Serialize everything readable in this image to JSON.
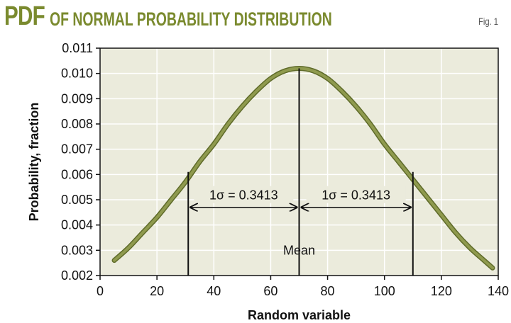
{
  "header": {
    "title_prefix": "PDF",
    "title_rest": "OF NORMAL PROBABILITY DISTRIBUTION",
    "fig_label": "Fig. 1"
  },
  "colors": {
    "title": "#7a8a2e",
    "plot_background": "#ebebdc",
    "curve": "#8f9a4e",
    "curve_edge": "#5f6b2a",
    "grid": "#ffffff"
  },
  "chart_data": {
    "type": "line",
    "xlabel": "Random variable",
    "ylabel": "Probability, fraction",
    "xlim": [
      0,
      140
    ],
    "ylim": [
      0.002,
      0.011
    ],
    "xticks": [
      0,
      20,
      40,
      60,
      80,
      100,
      120,
      140
    ],
    "yticks": [
      0.002,
      0.003,
      0.004,
      0.005,
      0.006,
      0.007,
      0.008,
      0.009,
      0.01,
      0.011
    ],
    "ytick_labels": [
      "0.002",
      "0.003",
      "0.004",
      "0.005",
      "0.006",
      "0.007",
      "0.008",
      "0.009",
      "0.010",
      "0.011"
    ],
    "grid": true,
    "series": [
      {
        "x": [
          5,
          10,
          15,
          20,
          25,
          30,
          35,
          40,
          45,
          50,
          55,
          60,
          65,
          70,
          75,
          80,
          85,
          90,
          95,
          100,
          105,
          110,
          115,
          120,
          125,
          130,
          135,
          138
        ],
        "values": [
          0.0026,
          0.0031,
          0.0037,
          0.0043,
          0.005,
          0.0057,
          0.0065,
          0.0072,
          0.008,
          0.0087,
          0.0093,
          0.0098,
          0.0101,
          0.0102,
          0.0101,
          0.0098,
          0.0093,
          0.0087,
          0.008,
          0.0072,
          0.0065,
          0.0058,
          0.0051,
          0.0044,
          0.0037,
          0.0031,
          0.0026,
          0.0023
        ]
      }
    ],
    "vertical_lines": [
      {
        "x": 31,
        "y_top": 0.0061
      },
      {
        "x": 70,
        "y_top": 0.0102
      },
      {
        "x": 110,
        "y_top": 0.0061
      }
    ],
    "annotations": [
      {
        "text": "1σ = 0.3413",
        "x_from": 31,
        "x_to": 70,
        "y": 0.0047
      },
      {
        "text": "1σ = 0.3413",
        "x_from": 70,
        "x_to": 110,
        "y": 0.0047
      },
      {
        "text": "Mean",
        "x": 70,
        "y": 0.003
      }
    ]
  }
}
